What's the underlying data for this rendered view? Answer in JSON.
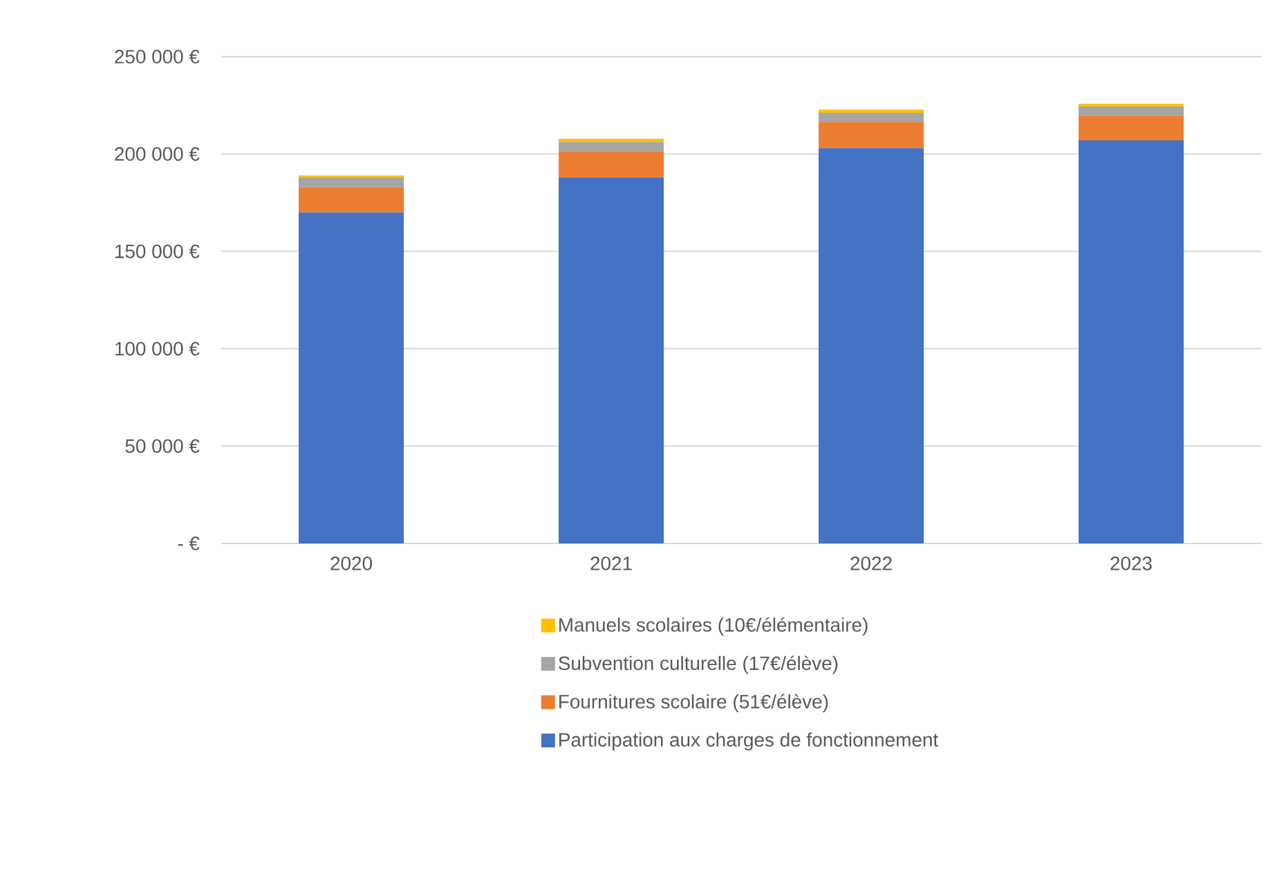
{
  "chart_data": {
    "type": "bar",
    "stacked": true,
    "categories": [
      "2020",
      "2021",
      "2022",
      "2023"
    ],
    "series": [
      {
        "name": "Participation aux charges de fonctionnement",
        "color": "#4472c4",
        "values": [
          170000,
          188000,
          203000,
          207000
        ]
      },
      {
        "name": "Fournitures scolaire (51€/élève)",
        "color": "#ed7d31",
        "values": [
          13000,
          13500,
          13500,
          12700
        ]
      },
      {
        "name": "Subvention culturelle (17€/élève)",
        "color": "#a5a5a5",
        "values": [
          5000,
          4700,
          4700,
          4700
        ]
      },
      {
        "name": "Manuels scolaires (10€/élémentaire)",
        "color": "#ffc000",
        "values": [
          1000,
          1600,
          1600,
          1400
        ]
      }
    ],
    "ylim": [
      0,
      250000
    ],
    "yticks": [
      {
        "value": 0,
        "label": "-   €"
      },
      {
        "value": 50000,
        "label": "50 000 €"
      },
      {
        "value": 100000,
        "label": "100 000 €"
      },
      {
        "value": 150000,
        "label": "150 000 €"
      },
      {
        "value": 200000,
        "label": "200 000 €"
      },
      {
        "value": 250000,
        "label": "250 000 €"
      }
    ],
    "grid": "y",
    "legend": "bottom"
  }
}
